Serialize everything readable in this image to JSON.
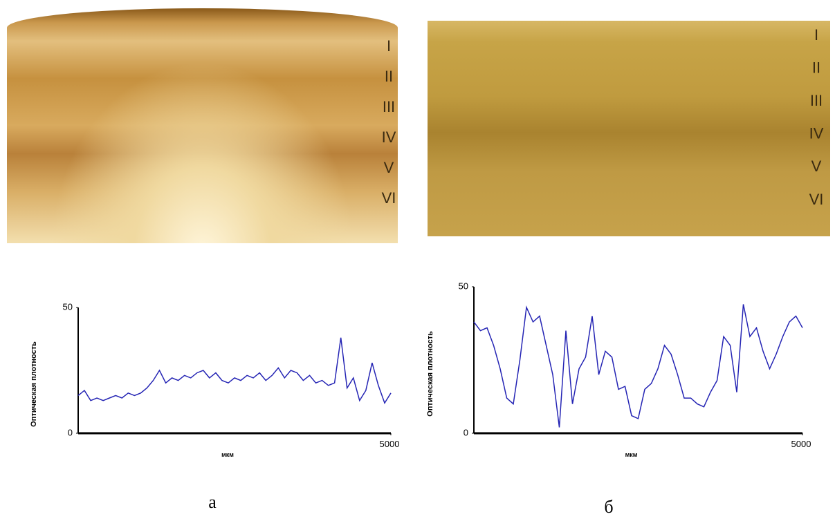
{
  "images": [
    {
      "layers": [
        "I",
        "II",
        "III",
        "IV",
        "V",
        "VI"
      ]
    },
    {
      "layers": [
        "I",
        "II",
        "III",
        "IV",
        "V",
        "VI"
      ]
    }
  ],
  "chart_data": [
    {
      "type": "line",
      "ylabel": "Оптическая плотность",
      "xlabel": "мкм",
      "color": "#2424b4",
      "xlim": [
        0,
        5000
      ],
      "xticks": [
        5000
      ],
      "ylim": [
        0,
        50
      ],
      "yticks": [
        0,
        50
      ],
      "x": [
        0,
        100,
        200,
        300,
        400,
        500,
        600,
        700,
        800,
        900,
        1000,
        1100,
        1200,
        1300,
        1400,
        1500,
        1600,
        1700,
        1800,
        1900,
        2000,
        2100,
        2200,
        2300,
        2400,
        2500,
        2600,
        2700,
        2800,
        2900,
        3000,
        3100,
        3200,
        3300,
        3400,
        3500,
        3600,
        3700,
        3800,
        3900,
        4000,
        4100,
        4200,
        4300,
        4400,
        4500,
        4600,
        4700,
        4800,
        4900,
        5000
      ],
      "values": [
        15,
        17,
        13,
        14,
        13,
        14,
        15,
        14,
        16,
        15,
        16,
        18,
        21,
        25,
        20,
        22,
        21,
        23,
        22,
        24,
        25,
        22,
        24,
        21,
        20,
        22,
        21,
        23,
        22,
        24,
        21,
        23,
        26,
        22,
        25,
        24,
        21,
        23,
        20,
        21,
        19,
        20,
        38,
        18,
        22,
        13,
        17,
        28,
        19,
        12,
        16
      ]
    },
    {
      "type": "line",
      "ylabel": "Оптическая плотность",
      "xlabel": "мкм",
      "color": "#2424b4",
      "xlim": [
        0,
        5000
      ],
      "xticks": [
        5000
      ],
      "ylim": [
        0,
        50
      ],
      "yticks": [
        0,
        50
      ],
      "x": [
        0,
        100,
        200,
        300,
        400,
        500,
        600,
        700,
        800,
        900,
        1000,
        1100,
        1200,
        1300,
        1400,
        1500,
        1600,
        1700,
        1800,
        1900,
        2000,
        2100,
        2200,
        2300,
        2400,
        2500,
        2600,
        2700,
        2800,
        2900,
        3000,
        3100,
        3200,
        3300,
        3400,
        3500,
        3600,
        3700,
        3800,
        3900,
        4000,
        4100,
        4200,
        4300,
        4400,
        4500,
        4600,
        4700,
        4800,
        4900,
        5000
      ],
      "values": [
        38,
        35,
        36,
        30,
        22,
        12,
        10,
        25,
        43,
        38,
        40,
        30,
        20,
        2,
        35,
        10,
        22,
        26,
        40,
        20,
        28,
        26,
        15,
        16,
        6,
        5,
        15,
        17,
        22,
        30,
        27,
        20,
        12,
        12,
        10,
        9,
        14,
        18,
        33,
        30,
        14,
        44,
        33,
        36,
        28,
        22,
        27,
        33,
        38,
        40,
        36
      ]
    }
  ],
  "captions": [
    "а",
    "б"
  ]
}
